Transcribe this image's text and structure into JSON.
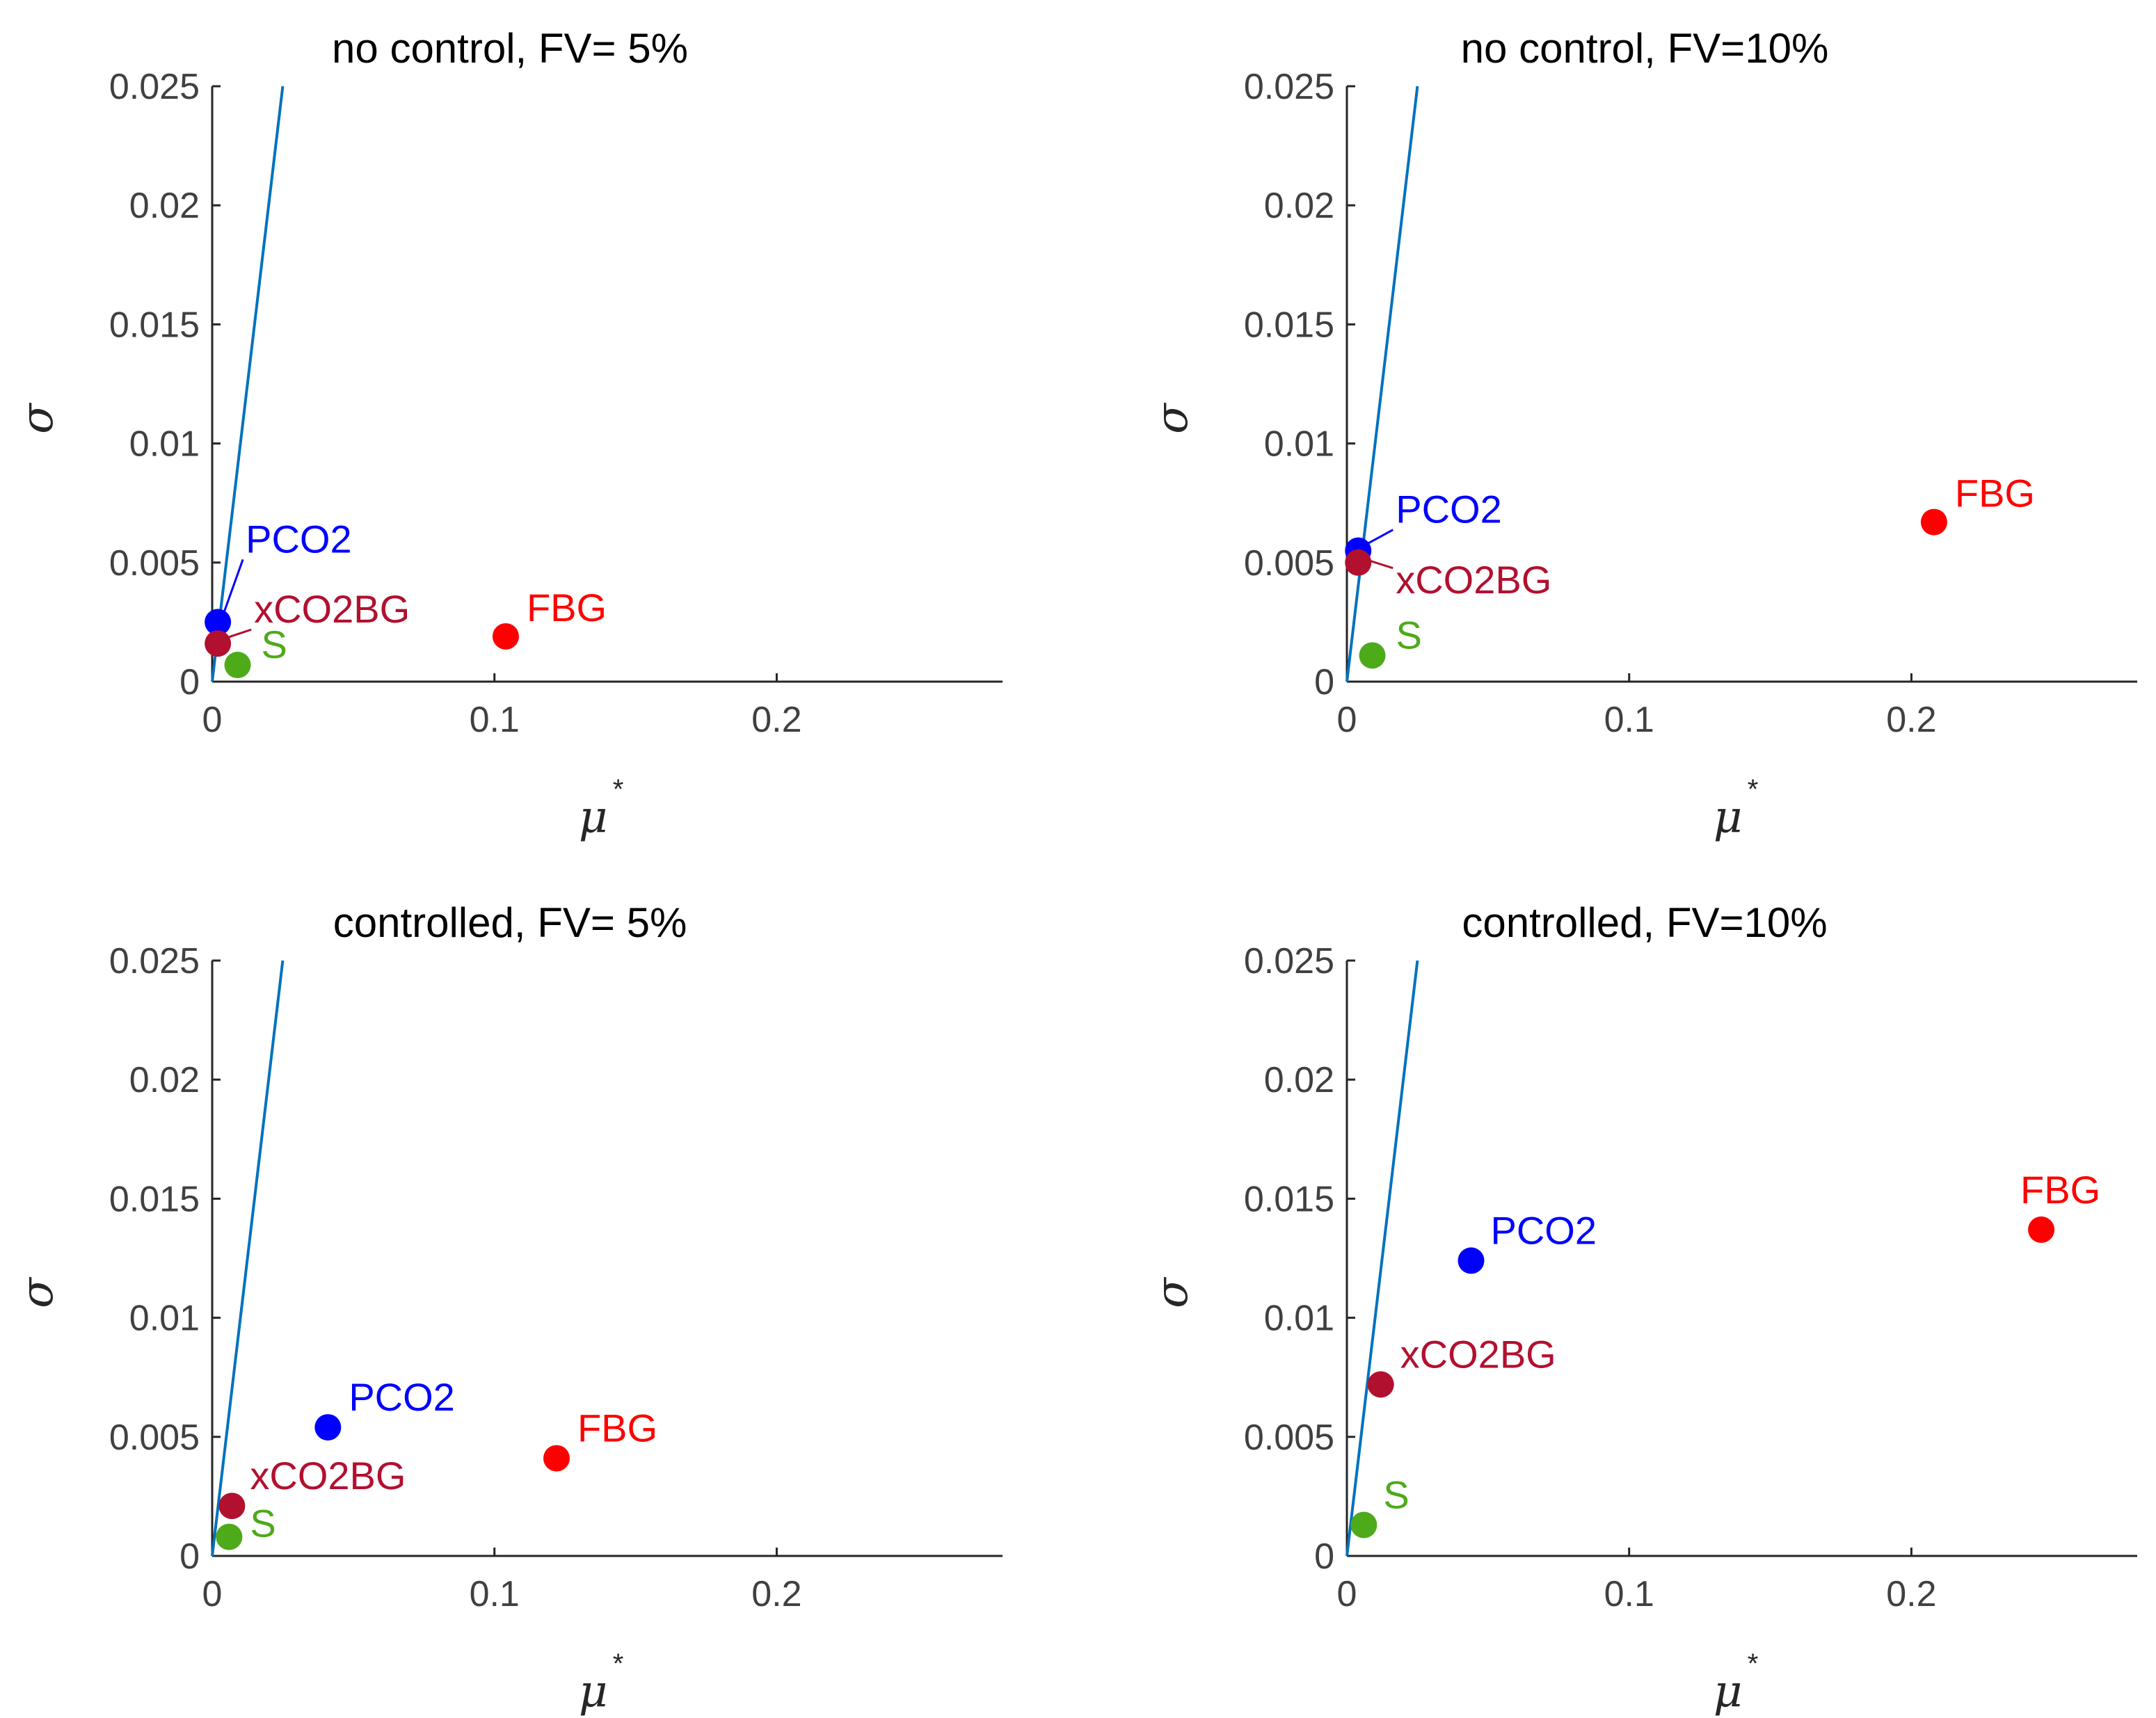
{
  "colors": {
    "PCO2": "#0000FF",
    "xCO2BG": "#B2102F",
    "FBG": "#FF0000",
    "S": "#4DAA19",
    "reference_line": "#0072BD"
  },
  "chart_data": [
    {
      "type": "scatter",
      "title": "no control, FV= 5%",
      "xlabel": "μ",
      "xlabel_sup": "*",
      "ylabel": "σ",
      "xlim": [
        0,
        0.28
      ],
      "ylim": [
        0,
        0.025
      ],
      "xticks": [
        "0",
        "0.1",
        "0.2"
      ],
      "yticks": [
        "0",
        "0.005",
        "0.01",
        "0.015",
        "0.02",
        "0.025"
      ],
      "reference_line": {
        "x": [
          0,
          0.025
        ],
        "y": [
          0,
          0.025
        ]
      },
      "points": [
        {
          "name": "PCO2",
          "x": 0.002,
          "y": 0.0025
        },
        {
          "name": "xCO2BG",
          "x": 0.002,
          "y": 0.0016
        },
        {
          "name": "FBG",
          "x": 0.104,
          "y": 0.0019
        },
        {
          "name": "S",
          "x": 0.009,
          "y": 0.0007
        }
      ]
    },
    {
      "type": "scatter",
      "title": "no control, FV=10%",
      "xlabel": "μ",
      "xlabel_sup": "*",
      "ylabel": "σ",
      "xlim": [
        0,
        0.28
      ],
      "ylim": [
        0,
        0.025
      ],
      "xticks": [
        "0",
        "0.1",
        "0.2"
      ],
      "yticks": [
        "0",
        "0.005",
        "0.01",
        "0.015",
        "0.02",
        "0.025"
      ],
      "reference_line": {
        "x": [
          0,
          0.025
        ],
        "y": [
          0,
          0.025
        ]
      },
      "points": [
        {
          "name": "PCO2",
          "x": 0.004,
          "y": 0.0055
        },
        {
          "name": "xCO2BG",
          "x": 0.004,
          "y": 0.005
        },
        {
          "name": "FBG",
          "x": 0.208,
          "y": 0.0067
        },
        {
          "name": "S",
          "x": 0.009,
          "y": 0.0011
        }
      ]
    },
    {
      "type": "scatter",
      "title": "controlled, FV= 5%",
      "xlabel": "μ",
      "xlabel_sup": "*",
      "ylabel": "σ",
      "xlim": [
        0,
        0.28
      ],
      "ylim": [
        0,
        0.025
      ],
      "xticks": [
        "0",
        "0.1",
        "0.2"
      ],
      "yticks": [
        "0",
        "0.005",
        "0.01",
        "0.015",
        "0.02",
        "0.025"
      ],
      "reference_line": {
        "x": [
          0,
          0.025
        ],
        "y": [
          0,
          0.025
        ]
      },
      "points": [
        {
          "name": "PCO2",
          "x": 0.041,
          "y": 0.0054
        },
        {
          "name": "xCO2BG",
          "x": 0.007,
          "y": 0.0021
        },
        {
          "name": "FBG",
          "x": 0.122,
          "y": 0.0041
        },
        {
          "name": "S",
          "x": 0.006,
          "y": 0.0008
        }
      ]
    },
    {
      "type": "scatter",
      "title": "controlled, FV=10%",
      "xlabel": "μ",
      "xlabel_sup": "*",
      "ylabel": "σ",
      "xlim": [
        0,
        0.28
      ],
      "ylim": [
        0,
        0.025
      ],
      "xticks": [
        "0",
        "0.1",
        "0.2"
      ],
      "yticks": [
        "0",
        "0.005",
        "0.01",
        "0.015",
        "0.02",
        "0.025"
      ],
      "reference_line": {
        "x": [
          0,
          0.025
        ],
        "y": [
          0,
          0.025
        ]
      },
      "points": [
        {
          "name": "PCO2",
          "x": 0.044,
          "y": 0.0124
        },
        {
          "name": "xCO2BG",
          "x": 0.012,
          "y": 0.0072
        },
        {
          "name": "FBG",
          "x": 0.246,
          "y": 0.0137
        },
        {
          "name": "S",
          "x": 0.006,
          "y": 0.0013
        }
      ]
    }
  ]
}
